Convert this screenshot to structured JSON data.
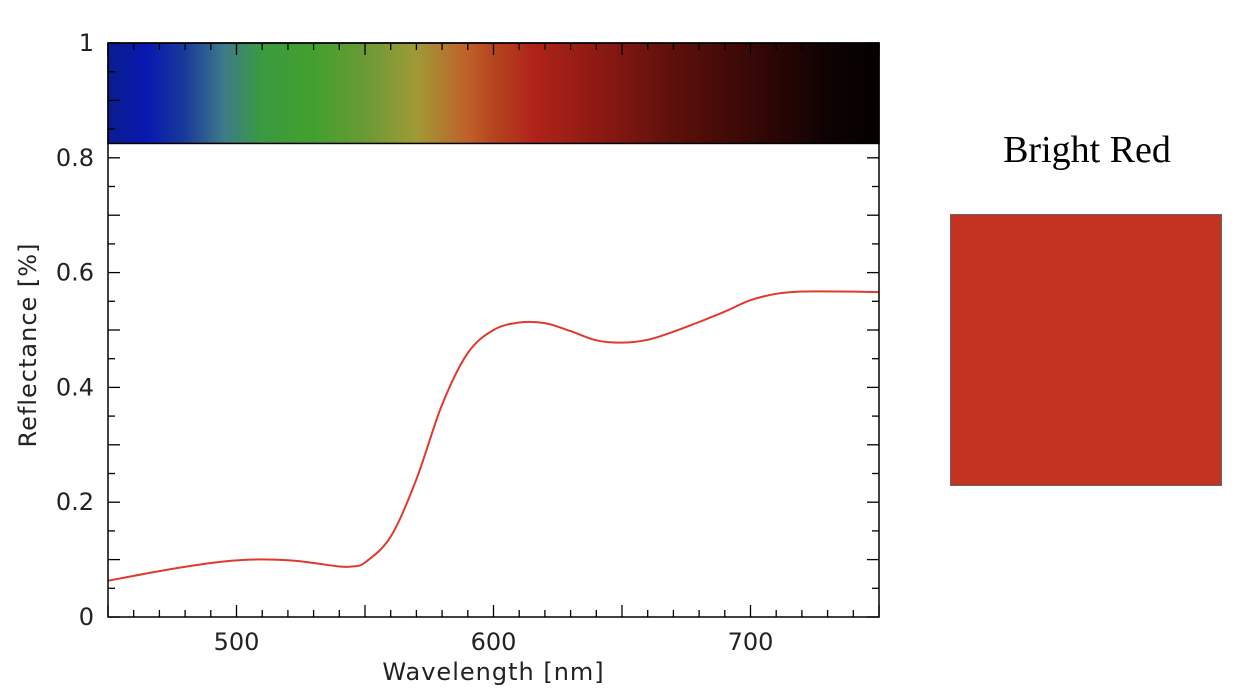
{
  "chart_data": {
    "type": "line",
    "title": "",
    "xlabel": "Wavelength [nm]",
    "ylabel": "Reflectance [%]",
    "xlim": [
      450,
      750
    ],
    "ylim": [
      0,
      1
    ],
    "x_ticks": [
      500,
      600,
      700
    ],
    "x_tick_labels": [
      "500",
      "600",
      "700"
    ],
    "y_ticks": [
      0,
      0.2,
      0.4,
      0.6,
      0.8,
      1
    ],
    "y_tick_labels": [
      "0",
      "0.2",
      "0.4",
      "0.6",
      "0.8",
      "1"
    ],
    "grid": false,
    "spectrum_band": {
      "y_range": [
        0.825,
        1
      ],
      "stops": [
        {
          "nm": 450,
          "color": "#0a1c8e"
        },
        {
          "nm": 465,
          "color": "#0718b0"
        },
        {
          "nm": 480,
          "color": "#1a3a9a"
        },
        {
          "nm": 495,
          "color": "#3e7a8a"
        },
        {
          "nm": 510,
          "color": "#3a9a40"
        },
        {
          "nm": 530,
          "color": "#43a02e"
        },
        {
          "nm": 550,
          "color": "#6a9a35"
        },
        {
          "nm": 570,
          "color": "#a09a35"
        },
        {
          "nm": 590,
          "color": "#c0602a"
        },
        {
          "nm": 600,
          "color": "#b5451f"
        },
        {
          "nm": 615,
          "color": "#b0241a"
        },
        {
          "nm": 640,
          "color": "#8e1a12"
        },
        {
          "nm": 670,
          "color": "#5e100a"
        },
        {
          "nm": 700,
          "color": "#380806"
        },
        {
          "nm": 730,
          "color": "#0e0202"
        },
        {
          "nm": 750,
          "color": "#050000"
        }
      ]
    },
    "series": [
      {
        "name": "Bright Red",
        "color": "#e03a2c",
        "x": [
          450,
          470,
          490,
          505,
          520,
          530,
          540,
          545,
          550,
          560,
          570,
          580,
          590,
          600,
          610,
          620,
          630,
          640,
          650,
          660,
          670,
          680,
          690,
          700,
          710,
          720,
          735,
          750
        ],
        "y": [
          0.063,
          0.08,
          0.094,
          0.1,
          0.099,
          0.094,
          0.088,
          0.088,
          0.095,
          0.14,
          0.24,
          0.37,
          0.46,
          0.5,
          0.513,
          0.512,
          0.498,
          0.482,
          0.478,
          0.483,
          0.497,
          0.514,
          0.532,
          0.552,
          0.563,
          0.567,
          0.567,
          0.566
        ]
      }
    ]
  },
  "swatch": {
    "title": "Bright Red",
    "color": "#c43322"
  }
}
